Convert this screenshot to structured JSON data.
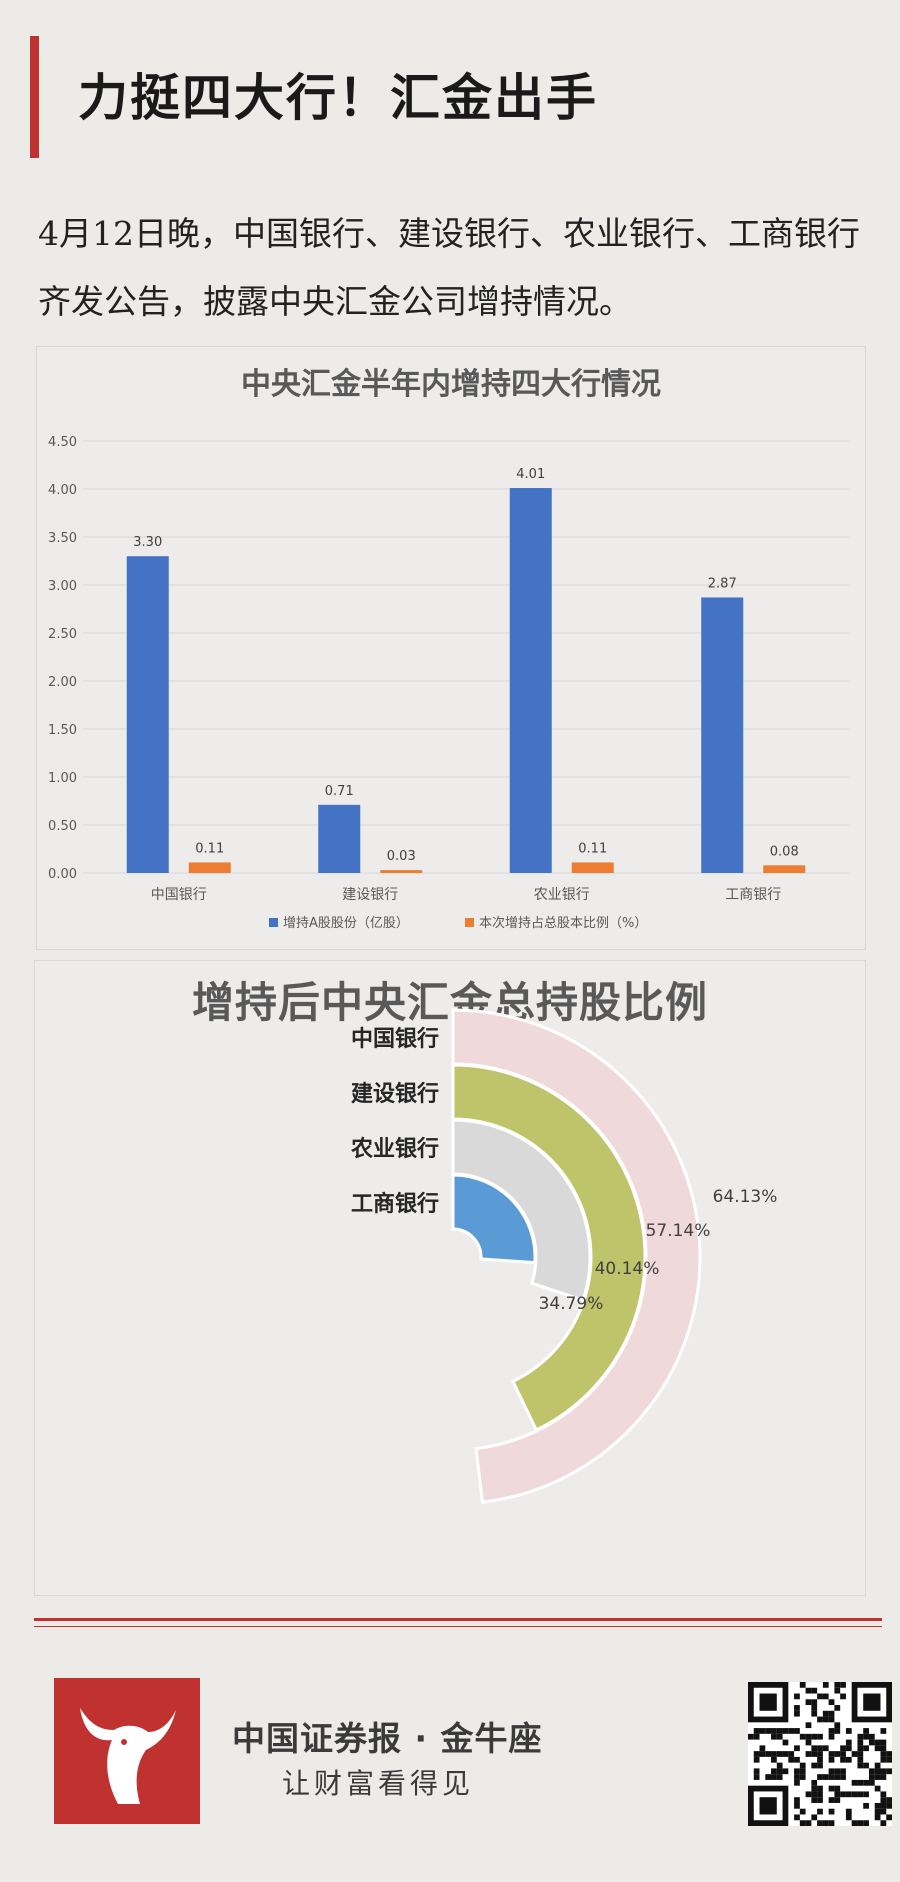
{
  "header": {
    "title": "力挺四大行！汇金出手",
    "intro": "4月12日晚，中国银行、建设银行、农业银行、工商银行齐发公告，披露中央汇金公司增持情况。"
  },
  "bar_chart": {
    "title": "中央汇金半年内增持四大行情况",
    "legend": [
      "增持A股股份（亿股）",
      "本次增持占总股本比例（%）"
    ]
  },
  "radial_chart": {
    "title": "增持后中央汇金总持股比例"
  },
  "chart_data": [
    {
      "type": "bar",
      "title": "中央汇金半年内增持四大行情况",
      "categories": [
        "中国银行",
        "建设银行",
        "农业银行",
        "工商银行"
      ],
      "series": [
        {
          "name": "增持A股股份（亿股）",
          "values": [
            3.3,
            0.71,
            4.01,
            2.87
          ],
          "color": "#4472c4"
        },
        {
          "name": "本次增持占总股本比例（%）",
          "values": [
            0.11,
            0.03,
            0.11,
            0.08
          ],
          "color": "#ed7d31"
        }
      ],
      "ylim": [
        0,
        4.5
      ],
      "yticks": [
        "0.00",
        "0.50",
        "1.00",
        "1.50",
        "2.00",
        "2.50",
        "3.00",
        "3.50",
        "4.00",
        "4.50"
      ],
      "value_labels": [
        [
          "3.30",
          "0.71",
          "4.01",
          "2.87"
        ],
        [
          "0.11",
          "0.03",
          "0.11",
          "0.08"
        ]
      ],
      "grid": true,
      "legend_position": "bottom"
    },
    {
      "type": "radial-bar",
      "title": "增持后中央汇金总持股比例",
      "categories": [
        "中国银行",
        "建设银行",
        "农业银行",
        "工商银行"
      ],
      "values": [
        64.13,
        57.14,
        40.14,
        34.79
      ],
      "value_labels": [
        "64.13%",
        "57.14%",
        "40.14%",
        "34.79%"
      ],
      "colors": [
        "#f0d9db",
        "#bfc36a",
        "#d9d9d9",
        "#5b9bd5"
      ]
    }
  ],
  "footer": {
    "brand": "中国证券报 · 金牛座",
    "slogan": "让财富看得见"
  }
}
